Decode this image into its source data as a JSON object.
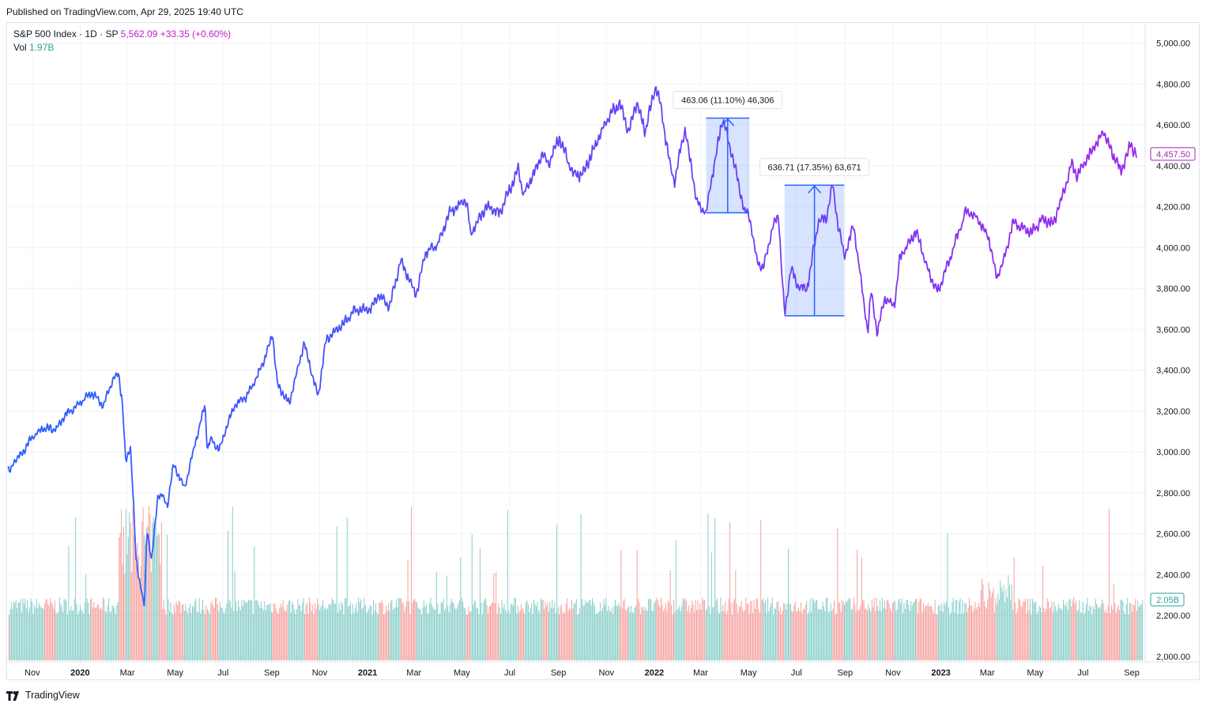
{
  "header": {
    "published": "Published on TradingView.com, Apr 29, 2025 19:40 UTC"
  },
  "legend": {
    "symbol": "S&P 500 Index · 1D · SP",
    "last": "5,562.09",
    "change": "+33.35 (+0.60%)",
    "vol_label": "Vol",
    "vol_value": "1.97B"
  },
  "footer": {
    "brand": "TradingView"
  },
  "colors": {
    "line_start": "#2962ff",
    "line_end": "#9c27f0",
    "vol_up": "#26a69a",
    "vol_down": "#ef5350",
    "annotation": "#2962ff",
    "grid": "#f0f3fa",
    "price_badge": "#9c27b0"
  },
  "chart_data": {
    "type": "line",
    "y_axis": {
      "range": [
        2000,
        5100
      ],
      "ticks": [
        "2,000.00",
        "2,200.00",
        "2,400.00",
        "2,600.00",
        "2,800.00",
        "3,000.00",
        "3,200.00",
        "3,400.00",
        "3,600.00",
        "3,800.00",
        "4,000.00",
        "4,200.00",
        "4,400.00",
        "4,600.00",
        "4,800.00",
        "5,000.00"
      ],
      "last_price_badge": "4,457.50",
      "volume_badge": "2.05B"
    },
    "x_axis": {
      "ticks": [
        {
          "label": "Nov",
          "bold": false
        },
        {
          "label": "2020",
          "bold": true
        },
        {
          "label": "Mar",
          "bold": false
        },
        {
          "label": "May",
          "bold": false
        },
        {
          "label": "Jul",
          "bold": false
        },
        {
          "label": "Sep",
          "bold": false
        },
        {
          "label": "Nov",
          "bold": false
        },
        {
          "label": "2021",
          "bold": true
        },
        {
          "label": "Mar",
          "bold": false
        },
        {
          "label": "May",
          "bold": false
        },
        {
          "label": "Jul",
          "bold": false
        },
        {
          "label": "Sep",
          "bold": false
        },
        {
          "label": "Nov",
          "bold": false
        },
        {
          "label": "2022",
          "bold": true
        },
        {
          "label": "Mar",
          "bold": false
        },
        {
          "label": "May",
          "bold": false
        },
        {
          "label": "Jul",
          "bold": false
        },
        {
          "label": "Sep",
          "bold": false
        },
        {
          "label": "Nov",
          "bold": false
        },
        {
          "label": "2023",
          "bold": true
        },
        {
          "label": "Mar",
          "bold": false
        },
        {
          "label": "May",
          "bold": false
        },
        {
          "label": "Jul",
          "bold": false
        },
        {
          "label": "Sep",
          "bold": false
        }
      ]
    },
    "series": [
      {
        "x": [
          "2019-10-01",
          "2019-10-03",
          "2019-10-10",
          "2019-10-20",
          "2019-11-01",
          "2019-11-15",
          "2019-12-01",
          "2019-12-15",
          "2020-01-01",
          "2020-01-15",
          "2020-01-31",
          "2020-02-10",
          "2020-02-19",
          "2020-02-24",
          "2020-02-28",
          "2020-03-05",
          "2020-03-09",
          "2020-03-12",
          "2020-03-16",
          "2020-03-23",
          "2020-03-26",
          "2020-04-01",
          "2020-04-09",
          "2020-04-15",
          "2020-04-21",
          "2020-04-29",
          "2020-05-13",
          "2020-05-27",
          "2020-06-08",
          "2020-06-11",
          "2020-06-15",
          "2020-06-26",
          "2020-07-15",
          "2020-07-31",
          "2020-08-14",
          "2020-08-28",
          "2020-09-02",
          "2020-09-08",
          "2020-09-23",
          "2020-10-12",
          "2020-10-30",
          "2020-11-09",
          "2020-11-30",
          "2020-12-15",
          "2021-01-04",
          "2021-01-15",
          "2021-01-29",
          "2021-02-12",
          "2021-03-04",
          "2021-03-15",
          "2021-04-01",
          "2021-04-15",
          "2021-05-07",
          "2021-05-12",
          "2021-06-01",
          "2021-06-18",
          "2021-07-12",
          "2021-07-19",
          "2021-08-12",
          "2021-08-19",
          "2021-09-02",
          "2021-09-20",
          "2021-10-01",
          "2021-10-15",
          "2021-11-02",
          "2021-11-18",
          "2021-11-30",
          "2021-12-10",
          "2021-12-20",
          "2022-01-03",
          "2022-01-10",
          "2022-01-21",
          "2022-01-27",
          "2022-02-09",
          "2022-02-24",
          "2022-03-08",
          "2022-03-16",
          "2022-03-29",
          "2022-04-05",
          "2022-04-14",
          "2022-04-26",
          "2022-05-02",
          "2022-05-12",
          "2022-05-20",
          "2022-06-01",
          "2022-06-08",
          "2022-06-16",
          "2022-06-24",
          "2022-07-01",
          "2022-07-14",
          "2022-07-29",
          "2022-08-08",
          "2022-08-16",
          "2022-08-22",
          "2022-08-31",
          "2022-09-12",
          "2022-09-30",
          "2022-10-04",
          "2022-10-12",
          "2022-10-21",
          "2022-11-03",
          "2022-11-10",
          "2022-12-01",
          "2022-12-15",
          "2022-12-28",
          "2023-01-10",
          "2023-02-02",
          "2023-02-15",
          "2023-03-03",
          "2023-03-13",
          "2023-03-22",
          "2023-04-03",
          "2023-04-25",
          "2023-05-10",
          "2023-05-24",
          "2023-06-08",
          "2023-06-16",
          "2023-06-23",
          "2023-07-12",
          "2023-07-27",
          "2023-08-03",
          "2023-08-18",
          "2023-08-31",
          "2023-09-07"
        ],
        "values": [
          2920,
          2900,
          2960,
          3000,
          3070,
          3120,
          3110,
          3190,
          3240,
          3290,
          3230,
          3340,
          3386,
          3225,
          2954,
          3025,
          2746,
          2480,
          2386,
          2237,
          2630,
          2470,
          2790,
          2783,
          2737,
          2940,
          2820,
          3050,
          3232,
          3000,
          3066,
          3009,
          3226,
          3271,
          3372,
          3508,
          3580,
          3331,
          3236,
          3534,
          3270,
          3550,
          3622,
          3694,
          3700,
          3768,
          3714,
          3934,
          3768,
          3968,
          4019,
          4170,
          4232,
          4063,
          4204,
          4166,
          4384,
          4258,
          4460,
          4405,
          4537,
          4357,
          4357,
          4471,
          4630,
          4705,
          4567,
          4712,
          4568,
          4797,
          4670,
          4398,
          4326,
          4587,
          4225,
          4170,
          4357,
          4632,
          4525,
          4392,
          4175,
          4155,
          3930,
          3901,
          4101,
          4160,
          3666,
          3912,
          3825,
          3790,
          4130,
          4140,
          4305,
          4137,
          3955,
          4110,
          3585,
          3790,
          3577,
          3752,
          3719,
          3956,
          4080,
          3895,
          3783,
          3919,
          4179,
          4147,
          4045,
          3855,
          3937,
          4124,
          4071,
          4137,
          4115,
          4293,
          4409,
          4348,
          4472,
          4566,
          4501,
          4370,
          4507,
          4451
        ]
      }
    ],
    "volume": {
      "unit": "billions",
      "last": "2.05B"
    },
    "annotations": [
      {
        "type": "measure",
        "label": "463.06 (11.10%) 46,306",
        "from_date": "2022-03-08",
        "to_date": "2022-05-02",
        "low": 4170,
        "high": 4633
      },
      {
        "type": "measure",
        "label": "636.71 (17.35%) 63,671",
        "from_date": "2022-06-16",
        "to_date": "2022-08-31",
        "low": 3666,
        "high": 4305
      }
    ]
  }
}
